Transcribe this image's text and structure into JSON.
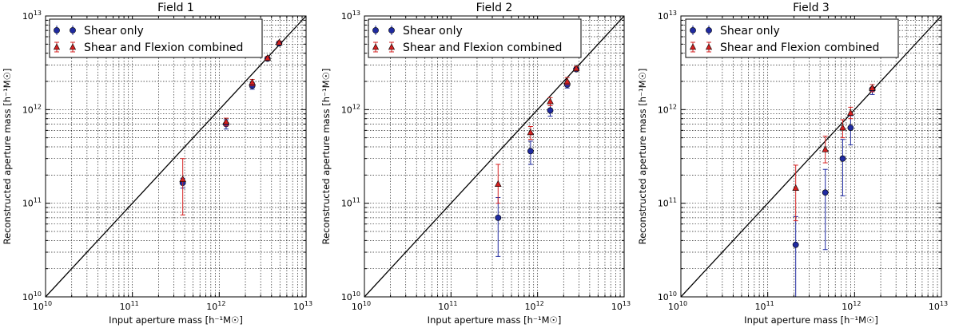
{
  "figure": {
    "background": "#ffffff"
  },
  "colors": {
    "shear": "#1f2aa0",
    "shear_flexion": "#d42020",
    "line": "#000000",
    "grid": "#000000"
  },
  "legend": {
    "shear_label": "Shear only",
    "flexion_label": "Shear and Flexion combined"
  },
  "tick_labels": {
    "major": [
      {
        "base": "10",
        "exp": "10"
      },
      {
        "base": "10",
        "exp": "11"
      },
      {
        "base": "10",
        "exp": "12"
      },
      {
        "base": "10",
        "exp": "13"
      }
    ]
  },
  "chart_data": [
    {
      "type": "scatter",
      "title": "Field 1",
      "xlabel": "Input aperture mass [h⁻¹M☉]",
      "ylabel": "Reconstructed aperture mass [h⁻¹M☉]",
      "xscale": "log",
      "yscale": "log",
      "xlim": [
        10000000000.0,
        10000000000000.0
      ],
      "ylim": [
        10000000000.0,
        10000000000000.0
      ],
      "grid": true,
      "legend_position": "top-left",
      "reference_line": "y = x",
      "series": [
        {
          "name": "Shear only",
          "marker": "circle",
          "x": [
            380000000000.0,
            1200000000000.0,
            2400000000000.0,
            3600000000000.0,
            4900000000000.0
          ],
          "y": [
            165000000000.0,
            700000000000.0,
            1800000000000.0,
            3500000000000.0,
            5100000000000.0
          ],
          "yerr_low": [
            145000000000.0,
            620000000000.0,
            1650000000000.0,
            3350000000000.0,
            4900000000000.0
          ],
          "yerr_high": [
            185000000000.0,
            780000000000.0,
            1950000000000.0,
            3650000000000.0,
            5300000000000.0
          ]
        },
        {
          "name": "Shear and Flexion combined",
          "marker": "triangle",
          "x": [
            380000000000.0,
            1200000000000.0,
            2400000000000.0,
            3600000000000.0,
            4900000000000.0
          ],
          "y": [
            180000000000.0,
            740000000000.0,
            1950000000000.0,
            3550000000000.0,
            5200000000000.0
          ],
          "yerr_low": [
            75000000000.0,
            670000000000.0,
            1800000000000.0,
            3400000000000.0,
            5000000000000.0
          ],
          "yerr_high": [
            300000000000.0,
            810000000000.0,
            2100000000000.0,
            3700000000000.0,
            5400000000000.0
          ]
        }
      ]
    },
    {
      "type": "scatter",
      "title": "Field 2",
      "xlabel": "Input aperture mass [h⁻¹M☉]",
      "ylabel": "Reconstructed aperture mass [h⁻¹M☉]",
      "xscale": "log",
      "yscale": "log",
      "xlim": [
        10000000000.0,
        10000000000000.0
      ],
      "ylim": [
        10000000000.0,
        10000000000000.0
      ],
      "grid": true,
      "legend_position": "top",
      "reference_line": "y = x",
      "series": [
        {
          "name": "Shear only",
          "marker": "circle",
          "x": [
            350000000000.0,
            830000000000.0,
            1400000000000.0,
            2200000000000.0,
            2800000000000.0
          ],
          "y": [
            70000000000.0,
            360000000000.0,
            980000000000.0,
            1850000000000.0,
            2700000000000.0
          ],
          "yerr_low": [
            27000000000.0,
            260000000000.0,
            850000000000.0,
            1700000000000.0,
            2600000000000.0
          ],
          "yerr_high": [
            115000000000.0,
            460000000000.0,
            1100000000000.0,
            2000000000000.0,
            2800000000000.0
          ]
        },
        {
          "name": "Shear and Flexion combined",
          "marker": "triangle",
          "x": [
            350000000000.0,
            830000000000.0,
            1400000000000.0,
            2200000000000.0,
            2800000000000.0
          ],
          "y": [
            160000000000.0,
            570000000000.0,
            1220000000000.0,
            2000000000000.0,
            2750000000000.0
          ],
          "yerr_low": [
            100000000000.0,
            480000000000.0,
            1100000000000.0,
            1850000000000.0,
            2600000000000.0
          ],
          "yerr_high": [
            260000000000.0,
            660000000000.0,
            1340000000000.0,
            2200000000000.0,
            2900000000000.0
          ]
        }
      ]
    },
    {
      "type": "scatter",
      "title": "Field 3",
      "xlabel": "Input aperture mass [h⁻¹M☉]",
      "ylabel": "Reconstructed aperture mass [h⁻¹M☉]",
      "xscale": "log",
      "yscale": "log",
      "xlim": [
        10000000000.0,
        10000000000000.0
      ],
      "ylim": [
        10000000000.0,
        10000000000000.0
      ],
      "grid": true,
      "legend_position": "top",
      "reference_line": "y = x",
      "series": [
        {
          "name": "Shear only",
          "marker": "circle",
          "x": [
            210000000000.0,
            460000000000.0,
            730000000000.0,
            900000000000.0,
            1600000000000.0
          ],
          "y": [
            36000000000.0,
            130000000000.0,
            300000000000.0,
            640000000000.0,
            1650000000000.0
          ],
          "yerr_low": [
            10000000000.0,
            32000000000.0,
            120000000000.0,
            420000000000.0,
            1450000000000.0
          ],
          "yerr_high": [
            72000000000.0,
            230000000000.0,
            480000000000.0,
            860000000000.0,
            1850000000000.0
          ]
        },
        {
          "name": "Shear and Flexion combined",
          "marker": "triangle",
          "x": [
            210000000000.0,
            460000000000.0,
            730000000000.0,
            900000000000.0,
            1600000000000.0
          ],
          "y": [
            145000000000.0,
            375000000000.0,
            640000000000.0,
            920000000000.0,
            1700000000000.0
          ],
          "yerr_low": [
            65000000000.0,
            270000000000.0,
            500000000000.0,
            800000000000.0,
            1550000000000.0
          ],
          "yerr_high": [
            255000000000.0,
            520000000000.0,
            780000000000.0,
            1060000000000.0,
            1850000000000.0
          ]
        }
      ]
    }
  ]
}
